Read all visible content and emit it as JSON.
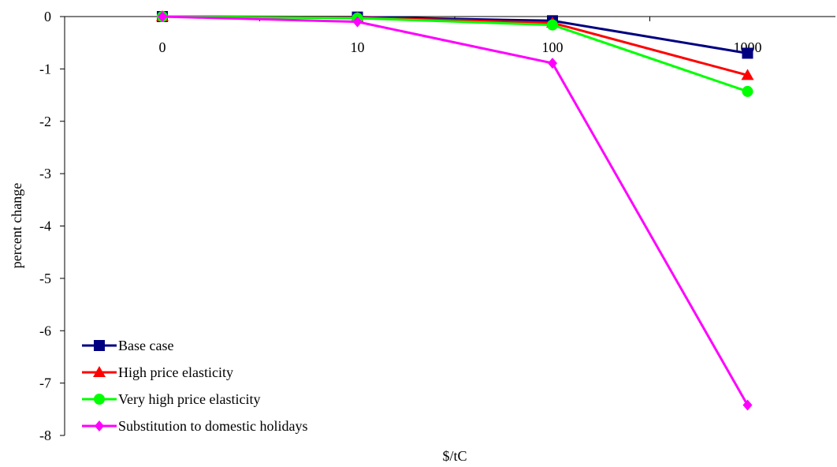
{
  "chart_data": {
    "type": "line",
    "title": "",
    "xlabel": "$/tC",
    "ylabel": "percent change",
    "categories": [
      "0",
      "10",
      "100",
      "1000"
    ],
    "ylim": [
      -8,
      0
    ],
    "yticks": [
      0,
      -1,
      -2,
      -3,
      -4,
      -5,
      -6,
      -7,
      -8
    ],
    "grid": false,
    "legend_position": "bottom-left",
    "series": [
      {
        "name": "Base case",
        "color": "#000080",
        "marker": "square",
        "values": [
          0,
          -0.01,
          -0.08,
          -0.7
        ]
      },
      {
        "name": "High price elasticity",
        "color": "#ff0000",
        "marker": "triangle",
        "values": [
          0,
          -0.02,
          -0.12,
          -1.12
        ]
      },
      {
        "name": "Very high price elasticity",
        "color": "#00ff00",
        "marker": "circle",
        "values": [
          0,
          -0.03,
          -0.16,
          -1.43
        ]
      },
      {
        "name": "Substitution to domestic holidays",
        "color": "#ff00ff",
        "marker": "diamond",
        "values": [
          0,
          -0.1,
          -0.89,
          -7.42
        ]
      }
    ]
  }
}
